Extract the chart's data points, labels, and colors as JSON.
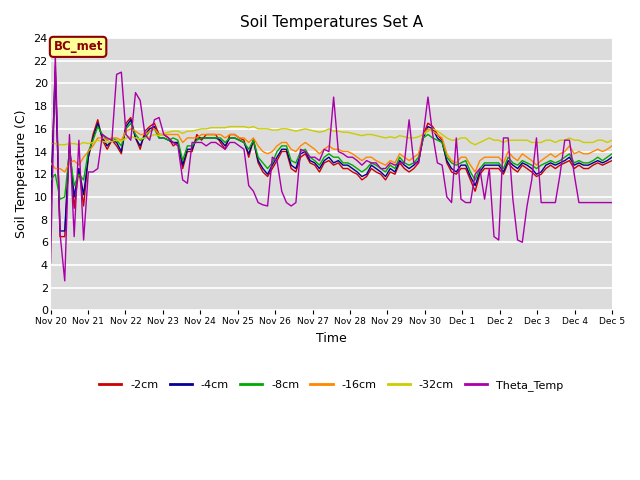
{
  "title": "Soil Temperatures Set A",
  "xlabel": "Time",
  "ylabel": "Soil Temperature (C)",
  "ylim": [
    0,
    24
  ],
  "yticks": [
    0,
    2,
    4,
    6,
    8,
    10,
    12,
    14,
    16,
    18,
    20,
    22,
    24
  ],
  "xtick_labels": [
    "Nov 20",
    "Nov 21",
    "Nov 22",
    "Nov 23",
    "Nov 24",
    "Nov 25",
    "Nov 26",
    "Nov 27",
    "Nov 28",
    "Nov 29",
    "Nov 30",
    "Dec 1",
    "Dec 2",
    "Dec 3",
    "Dec 4",
    "Dec 5"
  ],
  "plot_bg_color": "#dcdcdc",
  "fig_bg_color": "#ffffff",
  "grid_color": "#ffffff",
  "annotation_text": "BC_met",
  "annotation_bg": "#ffff99",
  "annotation_border": "#8b0000",
  "series": {
    "cm2": {
      "label": "-2cm",
      "color": "#cc0000",
      "values": [
        8.5,
        21.5,
        6.5,
        6.5,
        14.8,
        9.0,
        12.5,
        9.2,
        13.5,
        15.5,
        16.8,
        15.0,
        14.2,
        15.0,
        14.5,
        13.8,
        16.5,
        17.0,
        15.2,
        14.2,
        15.8,
        16.2,
        16.5,
        15.5,
        15.5,
        15.2,
        14.5,
        14.8,
        12.5,
        14.0,
        14.0,
        15.5,
        15.0,
        15.5,
        15.5,
        15.5,
        14.8,
        14.2,
        15.5,
        15.5,
        15.2,
        15.0,
        13.5,
        15.0,
        13.0,
        12.2,
        11.8,
        12.5,
        13.2,
        14.0,
        14.0,
        12.5,
        12.2,
        13.5,
        13.8,
        13.0,
        12.8,
        12.2,
        13.0,
        13.2,
        12.8,
        13.0,
        12.5,
        12.5,
        12.2,
        12.0,
        11.5,
        11.8,
        12.5,
        12.2,
        12.0,
        11.5,
        12.2,
        12.0,
        13.0,
        12.5,
        12.2,
        12.5,
        13.0,
        15.5,
        16.5,
        16.2,
        15.5,
        15.0,
        13.0,
        12.2,
        12.0,
        12.5,
        12.5,
        11.5,
        10.5,
        12.0,
        12.5,
        12.5,
        12.5,
        12.5,
        12.0,
        13.0,
        12.5,
        12.2,
        12.8,
        12.5,
        12.2,
        11.8,
        12.0,
        12.5,
        12.8,
        12.5,
        12.8,
        13.0,
        13.2,
        12.5,
        12.8,
        12.5,
        12.5,
        12.8,
        13.0,
        12.8,
        13.0,
        13.2
      ]
    },
    "cm4": {
      "label": "-4cm",
      "color": "#000099",
      "values": [
        9.5,
        21.0,
        7.0,
        7.0,
        14.5,
        10.0,
        12.5,
        10.2,
        13.5,
        15.2,
        16.5,
        15.2,
        14.5,
        15.0,
        14.8,
        14.0,
        16.2,
        16.8,
        15.2,
        14.5,
        15.5,
        16.0,
        16.2,
        15.2,
        15.2,
        15.0,
        14.8,
        14.8,
        12.8,
        14.2,
        14.2,
        15.2,
        15.2,
        15.2,
        15.2,
        15.2,
        15.0,
        14.5,
        15.2,
        15.2,
        15.0,
        14.8,
        13.8,
        15.0,
        13.2,
        12.5,
        12.0,
        12.8,
        13.5,
        14.2,
        14.2,
        12.8,
        12.5,
        13.8,
        14.0,
        13.2,
        13.0,
        12.5,
        13.2,
        13.5,
        13.0,
        13.2,
        12.8,
        12.8,
        12.5,
        12.2,
        11.8,
        12.0,
        12.8,
        12.5,
        12.2,
        11.8,
        12.5,
        12.2,
        13.2,
        12.8,
        12.5,
        12.8,
        13.2,
        15.2,
        16.2,
        16.0,
        15.2,
        14.8,
        13.2,
        12.5,
        12.2,
        12.8,
        12.8,
        11.8,
        11.0,
        12.2,
        12.8,
        12.8,
        12.8,
        12.8,
        12.2,
        13.2,
        12.8,
        12.5,
        13.0,
        12.8,
        12.5,
        12.0,
        12.2,
        12.8,
        13.0,
        12.8,
        13.0,
        13.2,
        13.5,
        12.8,
        13.0,
        12.8,
        12.8,
        13.0,
        13.2,
        13.0,
        13.2,
        13.5
      ]
    },
    "cm8": {
      "label": "-8cm",
      "color": "#00aa00",
      "values": [
        11.5,
        12.0,
        9.8,
        10.0,
        14.0,
        11.0,
        12.0,
        11.5,
        14.0,
        15.0,
        16.2,
        15.5,
        15.0,
        15.2,
        15.0,
        14.5,
        16.0,
        16.5,
        15.5,
        15.0,
        15.2,
        15.8,
        16.0,
        15.2,
        15.2,
        15.0,
        15.2,
        15.0,
        13.2,
        14.5,
        14.5,
        15.0,
        15.2,
        15.2,
        15.2,
        15.2,
        15.2,
        14.8,
        15.2,
        15.2,
        15.0,
        14.8,
        14.2,
        15.0,
        13.5,
        13.0,
        12.5,
        13.0,
        14.0,
        14.5,
        14.5,
        13.2,
        13.0,
        14.0,
        14.2,
        13.5,
        13.2,
        12.8,
        13.5,
        13.8,
        13.5,
        13.5,
        13.0,
        13.0,
        12.8,
        12.5,
        12.2,
        12.5,
        13.0,
        12.8,
        12.5,
        12.2,
        12.8,
        12.5,
        13.5,
        13.0,
        12.8,
        13.0,
        13.5,
        15.2,
        15.5,
        15.2,
        15.0,
        14.8,
        13.5,
        13.0,
        12.8,
        13.0,
        13.2,
        12.2,
        11.5,
        12.5,
        13.0,
        13.0,
        13.0,
        13.0,
        12.5,
        13.5,
        13.0,
        12.8,
        13.2,
        13.0,
        12.8,
        12.5,
        12.8,
        13.0,
        13.2,
        13.0,
        13.2,
        13.5,
        13.8,
        13.0,
        13.2,
        13.0,
        13.0,
        13.2,
        13.5,
        13.2,
        13.5,
        13.8
      ]
    },
    "cm16": {
      "label": "-16cm",
      "color": "#ff8800",
      "values": [
        13.0,
        12.5,
        12.5,
        12.2,
        13.0,
        13.2,
        12.8,
        13.5,
        14.0,
        14.5,
        15.2,
        15.2,
        15.0,
        15.2,
        15.2,
        15.0,
        15.8,
        16.0,
        15.8,
        15.5,
        15.5,
        15.8,
        16.0,
        15.5,
        15.5,
        15.5,
        15.5,
        15.5,
        14.8,
        15.2,
        15.2,
        15.2,
        15.5,
        15.5,
        15.5,
        15.5,
        15.5,
        15.2,
        15.5,
        15.5,
        15.2,
        15.2,
        14.8,
        15.2,
        14.5,
        14.0,
        13.8,
        14.0,
        14.5,
        14.8,
        14.8,
        14.2,
        14.0,
        14.5,
        14.8,
        14.5,
        14.2,
        13.8,
        14.2,
        14.5,
        14.2,
        14.2,
        14.0,
        14.0,
        13.8,
        13.5,
        13.2,
        13.5,
        13.5,
        13.2,
        13.0,
        12.8,
        13.2,
        13.0,
        13.8,
        13.5,
        13.2,
        13.5,
        13.8,
        15.5,
        16.0,
        15.8,
        15.5,
        15.2,
        13.8,
        13.2,
        13.0,
        13.5,
        13.5,
        12.8,
        12.2,
        13.2,
        13.5,
        13.5,
        13.5,
        13.5,
        13.0,
        14.0,
        13.5,
        13.2,
        13.8,
        13.5,
        13.2,
        12.8,
        13.2,
        13.5,
        13.8,
        13.5,
        13.8,
        14.0,
        14.5,
        13.8,
        14.0,
        13.8,
        13.8,
        14.0,
        14.2,
        14.0,
        14.2,
        14.5
      ]
    },
    "cm32": {
      "label": "-32cm",
      "color": "#cccc00",
      "values": [
        14.7,
        14.7,
        14.6,
        14.6,
        14.7,
        14.7,
        14.6,
        14.8,
        14.7,
        14.8,
        15.0,
        14.9,
        14.8,
        14.9,
        15.0,
        14.9,
        15.2,
        15.3,
        15.2,
        15.1,
        15.2,
        15.3,
        15.5,
        15.4,
        15.6,
        15.7,
        15.8,
        15.8,
        15.6,
        15.8,
        15.8,
        15.9,
        16.0,
        16.0,
        16.1,
        16.1,
        16.1,
        16.1,
        16.2,
        16.2,
        16.2,
        16.2,
        16.1,
        16.2,
        16.0,
        16.0,
        16.0,
        15.9,
        15.9,
        16.0,
        16.0,
        15.9,
        15.8,
        15.9,
        16.0,
        15.9,
        15.8,
        15.7,
        15.8,
        16.0,
        15.8,
        15.8,
        15.7,
        15.7,
        15.6,
        15.5,
        15.4,
        15.5,
        15.5,
        15.4,
        15.3,
        15.2,
        15.3,
        15.2,
        15.4,
        15.3,
        15.2,
        15.2,
        15.3,
        15.5,
        15.8,
        16.0,
        15.8,
        15.5,
        15.2,
        15.0,
        15.0,
        15.2,
        15.2,
        14.8,
        14.6,
        14.8,
        15.0,
        15.2,
        15.0,
        15.0,
        14.8,
        15.0,
        15.0,
        15.0,
        15.0,
        15.0,
        14.8,
        14.8,
        14.8,
        15.0,
        15.0,
        14.8,
        15.0,
        15.0,
        15.2,
        15.0,
        15.0,
        14.8,
        14.8,
        14.8,
        15.0,
        15.0,
        14.8,
        15.0
      ]
    },
    "theta": {
      "label": "Theta_Temp",
      "color": "#aa00aa",
      "values": [
        4.2,
        22.5,
        6.8,
        2.6,
        15.5,
        6.5,
        15.0,
        6.2,
        12.2,
        12.2,
        12.5,
        15.5,
        15.2,
        15.0,
        20.8,
        21.0,
        15.5,
        15.0,
        19.2,
        18.5,
        15.5,
        15.0,
        16.8,
        17.0,
        15.5,
        15.2,
        14.8,
        14.5,
        11.5,
        11.2,
        14.8,
        14.8,
        14.8,
        14.5,
        14.8,
        14.8,
        14.5,
        14.2,
        14.8,
        14.8,
        14.5,
        14.2,
        11.0,
        10.5,
        9.5,
        9.3,
        9.2,
        13.5,
        13.2,
        10.5,
        9.5,
        9.2,
        9.5,
        14.2,
        14.0,
        13.5,
        13.5,
        13.2,
        14.2,
        14.0,
        18.8,
        14.0,
        13.8,
        13.5,
        13.5,
        13.2,
        12.8,
        13.2,
        13.0,
        13.0,
        12.5,
        12.5,
        13.0,
        12.8,
        13.0,
        13.0,
        16.8,
        13.0,
        13.0,
        15.5,
        18.8,
        15.5,
        13.0,
        12.8,
        10.0,
        9.5,
        15.2,
        9.8,
        9.5,
        9.5,
        12.0,
        12.5,
        9.8,
        12.5,
        6.5,
        6.2,
        15.2,
        15.2,
        9.8,
        6.2,
        6.0,
        9.2,
        11.5,
        15.2,
        9.5,
        9.5,
        9.5,
        9.5,
        12.0,
        15.0,
        15.0,
        12.0,
        9.5,
        9.5,
        9.5,
        9.5,
        9.5,
        9.5,
        9.5,
        9.5
      ]
    }
  }
}
